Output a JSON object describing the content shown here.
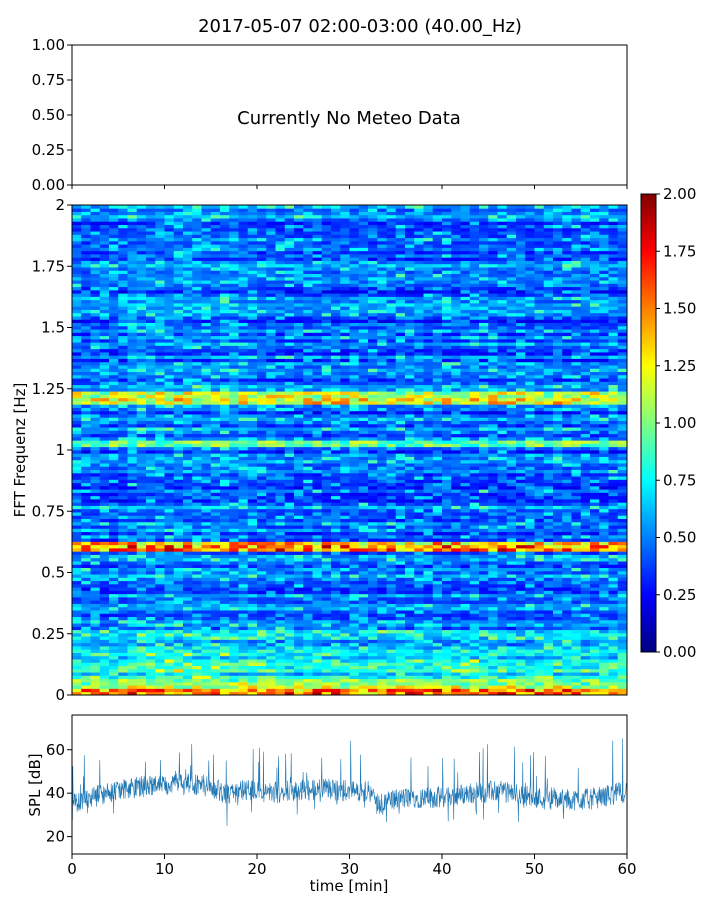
{
  "chart_data": [
    {
      "type": "line",
      "panel": "meteo",
      "title": "2017-05-07 02:00-03:00 (40.00_Hz)",
      "message": "Currently No Meteo Data",
      "ylim": [
        0,
        1
      ],
      "yticks": [
        "0.00",
        "0.25",
        "0.50",
        "0.75",
        "1.00"
      ],
      "xlim": [
        0,
        60
      ],
      "series": []
    },
    {
      "type": "heatmap",
      "panel": "spectrogram",
      "ylabel": "FFT Frequenz [Hz]",
      "ylim": [
        0,
        2
      ],
      "xlim": [
        0,
        60
      ],
      "yticks": [
        "0",
        "0.25",
        "0.5",
        "0.75",
        "1",
        "1.25",
        "1.5",
        "1.75",
        "2"
      ],
      "colormap": "jet",
      "colorbar": {
        "range": [
          0,
          2
        ],
        "ticks": [
          "0.00",
          "0.25",
          "0.50",
          "0.75",
          "1.00",
          "1.25",
          "1.50",
          "1.75",
          "2.00"
        ]
      },
      "bands": [
        {
          "freq": 0.01,
          "value": 1.6
        },
        {
          "freq": 0.03,
          "value": 1.2
        },
        {
          "freq": 0.05,
          "value": 1.0
        },
        {
          "freq": 0.18,
          "value": 0.8
        },
        {
          "freq": 0.6,
          "value": 1.6
        },
        {
          "freq": 0.62,
          "value": 1.4
        },
        {
          "freq": 1.03,
          "value": 1.0
        },
        {
          "freq": 1.2,
          "value": 1.3
        },
        {
          "freq": 1.23,
          "value": 1.2
        }
      ]
    },
    {
      "type": "line",
      "panel": "spl",
      "xlabel": "time [min]",
      "ylabel": "SPL [dB]",
      "xlim": [
        0,
        60
      ],
      "ylim": [
        12,
        76
      ],
      "xticks": [
        "0",
        "10",
        "20",
        "30",
        "40",
        "50",
        "60"
      ],
      "yticks": [
        "20",
        "40",
        "60"
      ],
      "series": [
        {
          "color": "#1f77b4",
          "x": [
            0,
            3,
            6,
            9,
            12,
            15,
            17,
            19,
            21,
            24,
            27,
            30,
            32,
            33,
            34,
            37,
            40,
            43,
            46,
            49,
            52,
            55,
            57,
            60
          ],
          "y": [
            35,
            39,
            42,
            44,
            45,
            43,
            39,
            42,
            40,
            41,
            42,
            41,
            41,
            35,
            37,
            38,
            38,
            40,
            41,
            39,
            37,
            37,
            38,
            41
          ],
          "spread": [
            5,
            5,
            5,
            5,
            5,
            5,
            5,
            5,
            5,
            5,
            5,
            5,
            5,
            5,
            5,
            5,
            5,
            5,
            5,
            5,
            5,
            5,
            5,
            5
          ]
        }
      ]
    }
  ]
}
